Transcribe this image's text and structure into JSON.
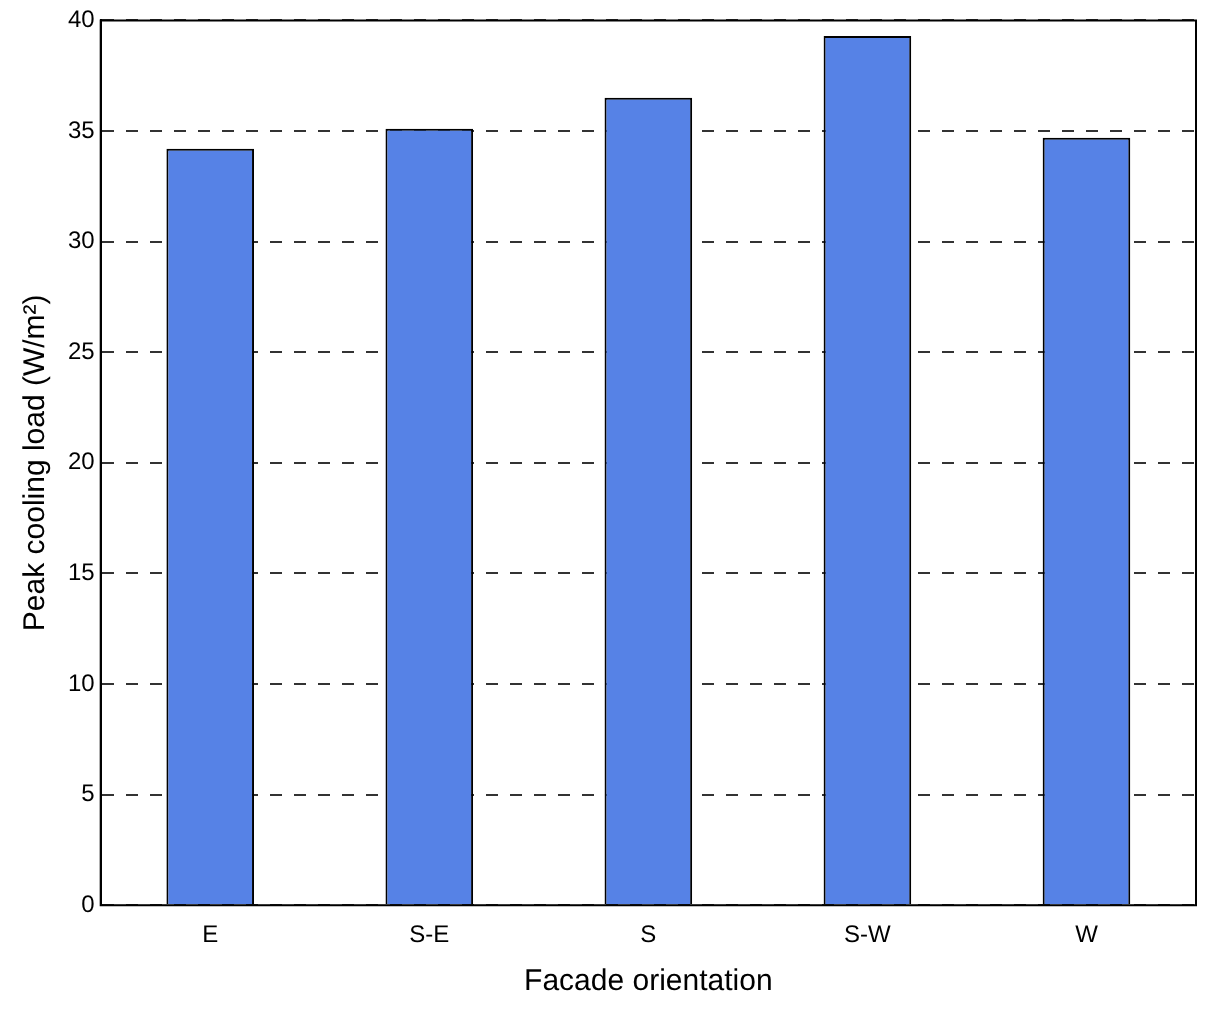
{
  "chart_data": {
    "type": "bar",
    "xlabel": "Facade orientation",
    "ylabel": "Peak cooling load (W/m²)",
    "categories": [
      "E",
      "S-E",
      "S",
      "S-W",
      "W"
    ],
    "values": [
      34.2,
      35.1,
      36.5,
      39.3,
      34.7
    ],
    "color": "#5682e6",
    "ylim": [
      0,
      40
    ],
    "yticks": [
      0,
      5,
      10,
      15,
      20,
      25,
      30,
      35,
      40
    ],
    "grid": "y",
    "legend": false
  }
}
